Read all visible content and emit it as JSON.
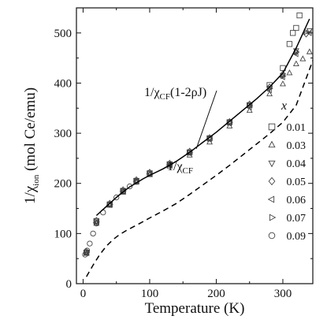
{
  "chart_data": {
    "type": "scatter",
    "title": "",
    "xlabel": "Temperature (K)",
    "ylabel": {
      "prefix": "1/χ",
      "sub": "ion",
      "suffix": "  (mol Ce/emu)"
    },
    "xlim": [
      -10,
      345
    ],
    "ylim": [
      0,
      550
    ],
    "xticks": [
      0,
      100,
      200,
      300
    ],
    "yticks": [
      0,
      100,
      200,
      300,
      400,
      500
    ],
    "legend": {
      "title": "x",
      "placement": "right",
      "entries": [
        {
          "label": "0.01",
          "marker": "square"
        },
        {
          "label": "0.03",
          "marker": "triangle-up"
        },
        {
          "label": "0.04",
          "marker": "triangle-down"
        },
        {
          "label": "0.05",
          "marker": "diamond"
        },
        {
          "label": "0.06",
          "marker": "triangle-left"
        },
        {
          "label": "0.07",
          "marker": "triangle-right"
        },
        {
          "label": "0.09",
          "marker": "circle"
        }
      ]
    },
    "curves": [
      {
        "style": "solid",
        "label": {
          "prefix": "1/χ",
          "sub": "CF",
          "suffix": "(1-2ρJ)"
        },
        "x": [
          20,
          30,
          40,
          50,
          60,
          70,
          80,
          90,
          100,
          120,
          140,
          160,
          180,
          200,
          220,
          240,
          260,
          280,
          300,
          320,
          340
        ],
        "y": [
          136,
          148,
          160,
          172,
          183,
          193,
          201,
          209,
          216,
          229,
          244,
          262,
          282,
          302,
          324,
          346,
          368,
          392,
          420,
          470,
          528
        ]
      },
      {
        "style": "dashed",
        "label": {
          "prefix": "1/χ",
          "sub": "CF",
          "suffix": ""
        },
        "x": [
          5,
          15,
          25,
          35,
          45,
          55,
          65,
          75,
          85,
          100,
          120,
          140,
          160,
          180,
          200,
          220,
          240,
          260,
          280,
          300,
          320,
          345
        ],
        "y": [
          14,
          37,
          58,
          75,
          88,
          98,
          106,
          113,
          120,
          131,
          145,
          160,
          178,
          197,
          216,
          236,
          257,
          278,
          299,
          322,
          356,
          445
        ]
      }
    ],
    "series": [
      {
        "name": "0.01",
        "marker": "square",
        "x": [
          5,
          20,
          40,
          60,
          80,
          100,
          130,
          160,
          190,
          220,
          250,
          280,
          300,
          310,
          315,
          320,
          325
        ],
        "y": [
          62,
          125,
          158,
          185,
          205,
          220,
          238,
          262,
          290,
          322,
          356,
          396,
          430,
          478,
          500,
          510,
          535
        ]
      },
      {
        "name": "0.03",
        "marker": "triangle-up",
        "x": [
          5,
          20,
          40,
          60,
          80,
          100,
          130,
          160,
          190,
          220,
          250,
          280,
          300,
          310,
          320,
          330,
          340
        ],
        "y": [
          60,
          120,
          156,
          182,
          202,
          217,
          234,
          256,
          282,
          314,
          345,
          378,
          398,
          420,
          438,
          448,
          462
        ]
      },
      {
        "name": "0.04",
        "marker": "triangle-down",
        "x": [
          5,
          20,
          40,
          60,
          80,
          100,
          130,
          160,
          190,
          220,
          250,
          280,
          300,
          320,
          340
        ],
        "y": [
          63,
          124,
          158,
          186,
          206,
          221,
          239,
          262,
          290,
          322,
          356,
          390,
          415,
          465,
          505
        ]
      },
      {
        "name": "0.05",
        "marker": "diamond",
        "x": [
          5,
          20,
          40,
          60,
          80,
          100,
          130,
          160,
          190,
          220,
          250,
          280,
          300,
          320,
          335
        ],
        "y": [
          64,
          126,
          160,
          187,
          207,
          222,
          240,
          264,
          291,
          323,
          358,
          392,
          418,
          462,
          498
        ]
      },
      {
        "name": "0.06",
        "marker": "triangle-left",
        "x": [
          5,
          20,
          40,
          60,
          80,
          100,
          130,
          160,
          190,
          220,
          250,
          280,
          300,
          320,
          340
        ],
        "y": [
          61,
          122,
          157,
          184,
          204,
          219,
          237,
          260,
          288,
          320,
          352,
          386,
          412,
          458,
          500
        ]
      },
      {
        "name": "0.07",
        "marker": "triangle-right",
        "x": [
          5,
          20,
          40,
          60,
          80,
          100,
          130,
          160,
          190,
          220,
          250,
          280,
          300,
          320,
          335
        ],
        "y": [
          62,
          123,
          158,
          185,
          205,
          220,
          238,
          261,
          289,
          321,
          355,
          389,
          414,
          462,
          502
        ]
      },
      {
        "name": "0.09",
        "marker": "circle",
        "x": [
          3,
          6,
          10,
          15,
          20,
          30,
          40,
          50,
          60,
          70,
          80
        ],
        "y": [
          58,
          66,
          80,
          100,
          120,
          142,
          158,
          172,
          184,
          194,
          203
        ]
      }
    ]
  }
}
